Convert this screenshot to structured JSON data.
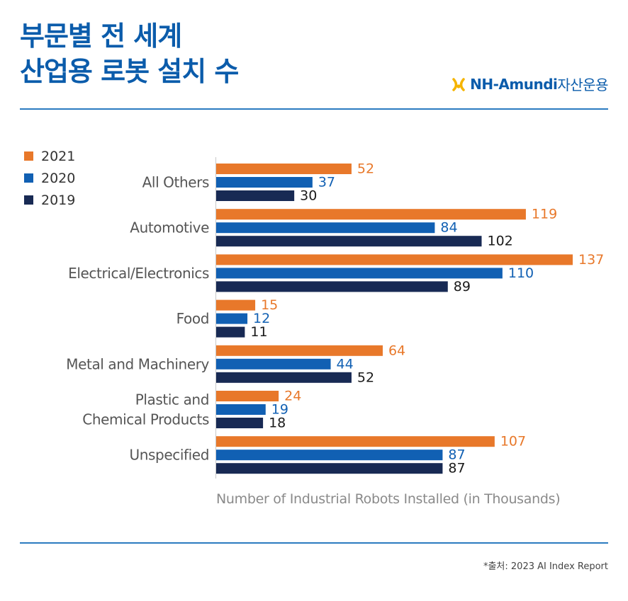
{
  "header": {
    "title_line1": "부문별 전 세계",
    "title_line2": "산업용 로봇 설치 수",
    "logo_brand": "NH-Amundi",
    "logo_suffix": "자산운용"
  },
  "colors": {
    "2021": "#e8782a",
    "2020": "#1160b3",
    "2019": "#182a54"
  },
  "chart_data": {
    "type": "bar",
    "orientation": "horizontal",
    "categories": [
      "All Others",
      "Automotive",
      "Electrical/Electronics",
      "Food",
      "Metal and Machinery",
      "Plastic and Chemical Products",
      "Unspecified"
    ],
    "category_lines": [
      [
        "All Others"
      ],
      [
        "Automotive"
      ],
      [
        "Electrical/Electronics"
      ],
      [
        "Food"
      ],
      [
        "Metal and Machinery"
      ],
      [
        "Plastic and ",
        "Chemical Products"
      ],
      [
        "Unspecified"
      ]
    ],
    "series": [
      {
        "name": "2021",
        "values": [
          52,
          119,
          137,
          15,
          64,
          24,
          107
        ]
      },
      {
        "name": "2020",
        "values": [
          37,
          84,
          110,
          12,
          44,
          19,
          87
        ]
      },
      {
        "name": "2019",
        "values": [
          30,
          102,
          89,
          11,
          52,
          18,
          87
        ]
      }
    ],
    "xlabel": "Number of Industrial Robots Installed (in Thousands)",
    "xlim": [
      0,
      137
    ],
    "legend_position": "top-left",
    "grid": false
  },
  "footer": {
    "source": "*출처: 2023 AI Index Report"
  }
}
